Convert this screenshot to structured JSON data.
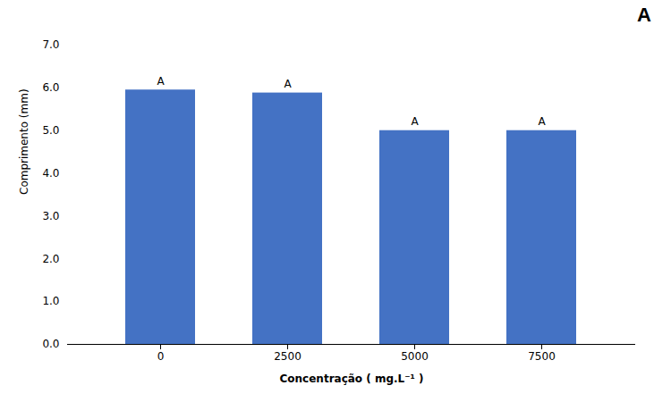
{
  "chart_data": {
    "type": "bar",
    "title": "A",
    "categories": [
      "0",
      "2500",
      "5000",
      "7500"
    ],
    "values": [
      5.95,
      5.88,
      5.0,
      5.0
    ],
    "color": "#4472C4",
    "xlabel": "Concentração ( mg.L⁻¹ )",
    "ylabel": "Comprimento (mm)",
    "ylim": [
      0,
      7
    ],
    "yticks": [
      0,
      1,
      2,
      3,
      4,
      5,
      6,
      7
    ],
    "annotations": [
      "A",
      "A",
      "A",
      "A"
    ],
    "grid": false
  }
}
